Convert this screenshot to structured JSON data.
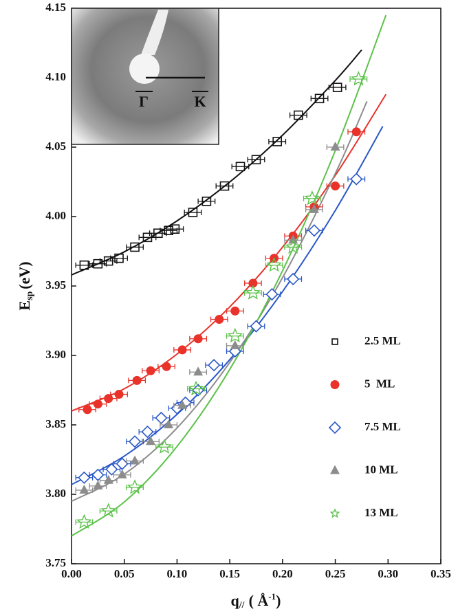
{
  "chart_data": {
    "type": "scatter",
    "y_label": {
      "main": "E",
      "sub": "sp",
      "unit": "(eV)"
    },
    "x_label": {
      "main": "q",
      "sub": "//",
      "unit": "( Å",
      "sup": "-1",
      "end": ")"
    },
    "xlim": [
      0,
      0.35
    ],
    "ylim": [
      3.75,
      4.15
    ],
    "xticks": [
      {
        "value": 0,
        "label": "0.00"
      },
      0.05,
      {
        "value": 0.1,
        "label": "0.10"
      },
      0.15,
      {
        "value": 0.2,
        "label": "0.20"
      },
      0.25,
      {
        "value": 0.3,
        "label": "0.30"
      },
      0.35
    ],
    "yticks": [
      3.75,
      {
        "value": 3.8,
        "label": "3.80"
      },
      3.85,
      {
        "value": 3.9,
        "label": "3.90"
      },
      3.95,
      {
        "value": 4.0,
        "label": "4.00"
      },
      4.05,
      {
        "value": 4.1,
        "label": "4.10"
      },
      4.15
    ],
    "legend": "right",
    "inset": {
      "labels": [
        "Γ",
        "K"
      ]
    },
    "series": [
      {
        "name": "2.5 ML",
        "color": "#111111",
        "marker": "square",
        "xerr": 0.008,
        "x": [
          0.012,
          0.025,
          0.035,
          0.045,
          0.06,
          0.072,
          0.082,
          0.092,
          0.098,
          0.115,
          0.128,
          0.145,
          0.16,
          0.175,
          0.195,
          0.215,
          0.235,
          0.252
        ],
        "y": [
          3.965,
          3.966,
          3.968,
          3.97,
          3.978,
          3.985,
          3.988,
          3.99,
          3.991,
          4.003,
          4.011,
          4.022,
          4.036,
          4.041,
          4.054,
          4.073,
          4.085,
          4.093
        ],
        "fit_x": [
          0,
          0.05,
          0.1,
          0.15,
          0.2,
          0.25,
          0.275
        ],
        "fit_y": [
          3.958,
          3.9746,
          3.9969,
          4.0249,
          4.0586,
          4.098,
          4.12
        ]
      },
      {
        "name": "5  ML",
        "color": "#e8322a",
        "marker": "circle",
        "xerr": 0.008,
        "x": [
          0.015,
          0.025,
          0.035,
          0.045,
          0.062,
          0.075,
          0.09,
          0.105,
          0.12,
          0.14,
          0.155,
          0.172,
          0.192,
          0.21,
          0.23,
          0.25,
          0.27
        ],
        "y": [
          3.861,
          3.865,
          3.869,
          3.872,
          3.882,
          3.889,
          3.892,
          3.904,
          3.912,
          3.926,
          3.932,
          3.952,
          3.97,
          3.986,
          4.007,
          4.022,
          4.061
        ],
        "fit_x": [
          0,
          0.05,
          0.1,
          0.15,
          0.2,
          0.25,
          0.298
        ],
        "fit_y": [
          3.86,
          3.876,
          3.901,
          3.935,
          3.978,
          4.0297,
          4.088
        ]
      },
      {
        "name": "7.5 ML",
        "color": "#2957c8",
        "marker": "diamond",
        "xerr": 0.008,
        "x": [
          0.012,
          0.025,
          0.038,
          0.048,
          0.06,
          0.072,
          0.085,
          0.1,
          0.108,
          0.12,
          0.135,
          0.155,
          0.175,
          0.19,
          0.21,
          0.23,
          0.27
        ],
        "y": [
          3.812,
          3.814,
          3.818,
          3.822,
          3.838,
          3.845,
          3.855,
          3.862,
          3.866,
          3.875,
          3.893,
          3.903,
          3.921,
          3.944,
          3.955,
          3.99,
          4.027
        ],
        "fit_x": [
          0,
          0.05,
          0.1,
          0.15,
          0.2,
          0.25,
          0.295
        ],
        "fit_y": [
          3.807,
          3.8275,
          3.8576,
          3.897,
          3.946,
          4.0044,
          4.065
        ]
      },
      {
        "name": "10 ML",
        "color": "#8c8c8c",
        "marker": "triangle",
        "xerr": 0.008,
        "x": [
          0.012,
          0.025,
          0.035,
          0.048,
          0.06,
          0.075,
          0.092,
          0.105,
          0.12,
          0.155,
          0.21,
          0.23,
          0.25
        ],
        "y": [
          3.803,
          3.806,
          3.81,
          3.814,
          3.824,
          3.838,
          3.85,
          3.864,
          3.888,
          3.907,
          3.983,
          4.005,
          4.05
        ],
        "fit_x": [
          0,
          0.05,
          0.1,
          0.15,
          0.2,
          0.25,
          0.28
        ],
        "fit_y": [
          3.795,
          3.8145,
          3.8478,
          3.895,
          3.956,
          4.031,
          4.083
        ]
      },
      {
        "name": "13 ML",
        "color": "#5cc24a",
        "marker": "star",
        "xerr": 0.008,
        "x": [
          0.012,
          0.035,
          0.06,
          0.088,
          0.118,
          0.155,
          0.172,
          0.192,
          0.21,
          0.228,
          0.272
        ],
        "y": [
          3.78,
          3.788,
          3.805,
          3.834,
          3.876,
          3.914,
          3.945,
          3.965,
          3.978,
          4.013,
          4.099
        ],
        "fit_x": [
          0,
          0.05,
          0.1,
          0.15,
          0.2,
          0.25,
          0.298
        ],
        "fit_y": [
          3.77,
          3.7945,
          3.8345,
          3.89,
          3.961,
          4.0475,
          4.145
        ]
      }
    ]
  }
}
